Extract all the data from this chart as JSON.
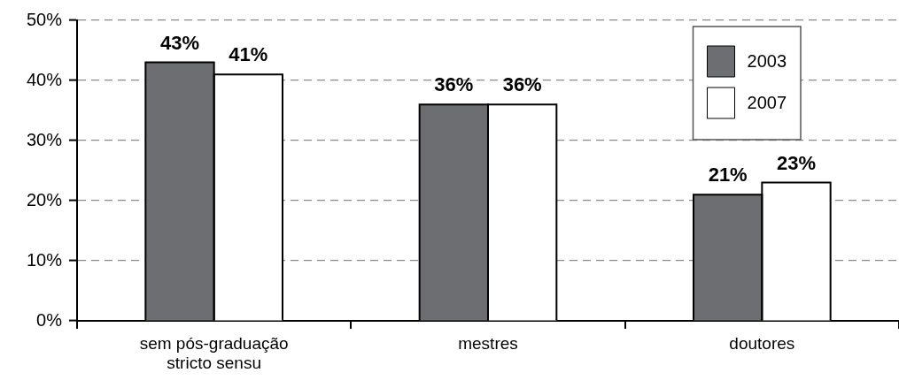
{
  "chart_data": {
    "type": "bar",
    "categories": [
      "sem pós-graduação stricto sensu",
      "mestres",
      "doutores"
    ],
    "series": [
      {
        "name": "2003",
        "color": "#6d6e71",
        "values": [
          43,
          36,
          21
        ],
        "value_labels": [
          "43%",
          "36%",
          "21%"
        ]
      },
      {
        "name": "2007",
        "color": "#ffffff",
        "values": [
          41,
          36,
          23
        ],
        "value_labels": [
          "41%",
          "36%",
          "23%"
        ]
      }
    ],
    "ylim": [
      0,
      50
    ],
    "yticks": [
      {
        "value": 0,
        "label": "0%"
      },
      {
        "value": 10,
        "label": "10%"
      },
      {
        "value": 20,
        "label": "20%"
      },
      {
        "value": 30,
        "label": "30%"
      },
      {
        "value": 40,
        "label": "40%"
      },
      {
        "value": 50,
        "label": "50%"
      }
    ],
    "grid": "y",
    "legend": "top right"
  }
}
